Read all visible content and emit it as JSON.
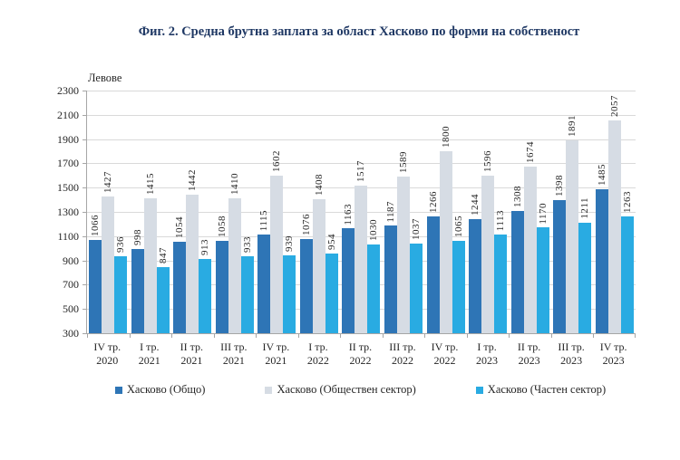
{
  "title": "Фиг. 2. Средна брутна заплата за област Хасково по форми на собственост",
  "chart_data": {
    "type": "bar",
    "title": "Фиг. 2. Средна брутна заплата за област Хасково по форми на собственост",
    "ylabel": "Левове",
    "xlabel": "",
    "ylim": [
      300,
      2300
    ],
    "ytick_step": 200,
    "grid": true,
    "legend_position": "bottom",
    "categories": [
      "IV тр. 2020",
      "I тр. 2021",
      "II тр. 2021",
      "III тр. 2021",
      "IV тр. 2021",
      "I тр. 2022",
      "II тр. 2022",
      "III тр. 2022",
      "IV тр. 2022",
      "I тр. 2023",
      "II тр. 2023",
      "III тр. 2023",
      "IV тр. 2023"
    ],
    "series": [
      {
        "name": "Хасково (Общо)",
        "color": "#2E75B6",
        "values": [
          1066,
          998,
          1054,
          1058,
          1115,
          1076,
          1163,
          1187,
          1266,
          1244,
          1308,
          1398,
          1485
        ]
      },
      {
        "name": "Хасково (Обществен сектор)",
        "color": "#D6DCE4",
        "values": [
          1427,
          1415,
          1442,
          1410,
          1602,
          1408,
          1517,
          1589,
          1800,
          1596,
          1674,
          1891,
          2057
        ]
      },
      {
        "name": "Хасково (Частен сектор)",
        "color": "#29ABE2",
        "values": [
          936,
          847,
          913,
          933,
          939,
          954,
          1030,
          1037,
          1065,
          1113,
          1170,
          1211,
          1263
        ]
      }
    ]
  },
  "colors": {
    "grid": "#D9D9D9",
    "axis": "#A6A6A6",
    "title": "#1F3864",
    "text": "#262626"
  }
}
